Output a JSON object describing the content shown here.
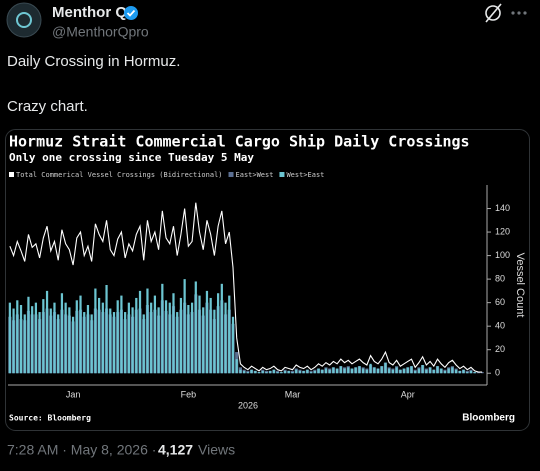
{
  "tweet": {
    "author": "Menthor Q",
    "handle": "@MenthorQpro",
    "lines": [
      "Daily Crossing in Hormuz.",
      "Crazy chart."
    ]
  },
  "footer": {
    "time": "7:28 AM · May 8, 2026 ·",
    "views_count": "4,127",
    "views_label": "Views"
  },
  "chart_data": {
    "type": "bar",
    "title": "Hormuz Strait Commercial Cargo Ship Daily Crossings",
    "subtitle": "Only one crossing since Tuesday 5 May",
    "source": "Source: Bloomberg",
    "brand": "Bloomberg",
    "ylabel": "Vessel Count",
    "x_year_label": "2026",
    "categories": [
      null,
      null,
      null,
      null,
      null,
      null,
      null,
      null,
      null,
      null,
      null,
      null,
      null,
      null,
      null,
      null,
      null,
      "Jan",
      null,
      null,
      null,
      null,
      null,
      null,
      null,
      null,
      null,
      null,
      null,
      null,
      null,
      null,
      null,
      null,
      null,
      null,
      null,
      null,
      null,
      null,
      null,
      null,
      null,
      null,
      null,
      null,
      null,
      null,
      "Feb",
      null,
      null,
      null,
      null,
      null,
      null,
      null,
      null,
      null,
      null,
      null,
      null,
      null,
      null,
      null,
      null,
      null,
      null,
      null,
      null,
      null,
      null,
      null,
      null,
      null,
      null,
      null,
      "Mar",
      null,
      null,
      null,
      null,
      null,
      null,
      null,
      null,
      null,
      null,
      null,
      null,
      null,
      null,
      null,
      null,
      null,
      null,
      null,
      null,
      null,
      null,
      null,
      null,
      null,
      null,
      null,
      null,
      null,
      null,
      "Apr",
      null,
      null,
      null,
      null,
      null,
      null,
      null,
      null,
      null,
      null,
      null,
      null,
      null,
      null,
      null,
      null,
      null,
      null,
      null,
      null
    ],
    "series": [
      {
        "name": "Total Commerical Vessel Crossings (Bidirectional)",
        "color": "#ffffff",
        "kind": "line",
        "values": [
          108,
          100,
          112,
          104,
          95,
          118,
          107,
          110,
          98,
          115,
          125,
          104,
          112,
          96,
          122,
          110,
          105,
          92,
          115,
          120,
          100,
          108,
          95,
          127,
          118,
          112,
          130,
          105,
          100,
          114,
          120,
          98,
          110,
          104,
          118,
          125,
          96,
          130,
          112,
          120,
          105,
          138,
          115,
          110,
          125,
          100,
          118,
          140,
          108,
          112,
          145,
          120,
          105,
          130,
          118,
          100,
          125,
          138,
          110,
          120,
          90,
          30,
          8,
          5,
          3,
          6,
          4,
          2,
          5,
          3,
          4,
          6,
          3,
          2,
          5,
          4,
          3,
          7,
          5,
          4,
          6,
          3,
          5,
          8,
          6,
          9,
          7,
          10,
          8,
          12,
          9,
          11,
          8,
          10,
          12,
          9,
          7,
          15,
          10,
          8,
          12,
          18,
          9,
          7,
          11,
          6,
          8,
          10,
          12,
          5,
          9,
          14,
          7,
          10,
          6,
          12,
          8,
          5,
          9,
          11,
          7,
          4,
          6,
          3,
          5,
          2,
          1,
          1
        ]
      },
      {
        "name": "East>West",
        "color": "#5b6f92",
        "kind": "bar",
        "values": [
          48,
          45,
          50,
          46,
          45,
          53,
          50,
          50,
          46,
          52,
          55,
          49,
          52,
          46,
          54,
          50,
          49,
          44,
          53,
          54,
          48,
          50,
          45,
          55,
          54,
          52,
          55,
          50,
          48,
          52,
          54,
          46,
          50,
          48,
          54,
          55,
          46,
          58,
          52,
          54,
          49,
          62,
          53,
          50,
          57,
          48,
          54,
          60,
          50,
          52,
          67,
          54,
          49,
          60,
          54,
          46,
          57,
          62,
          50,
          54,
          42,
          18,
          5,
          3,
          2,
          3,
          2,
          1,
          3,
          2,
          2,
          3,
          2,
          1,
          3,
          2,
          2,
          4,
          3,
          2,
          3,
          2,
          3,
          4,
          3,
          5,
          4,
          5,
          4,
          6,
          5,
          6,
          4,
          5,
          6,
          5,
          4,
          7,
          5,
          4,
          6,
          9,
          5,
          4,
          6,
          3,
          4,
          5,
          6,
          3,
          5,
          7,
          4,
          5,
          3,
          6,
          4,
          3,
          5,
          6,
          4,
          2,
          3,
          2,
          3,
          1,
          1,
          1
        ]
      },
      {
        "name": "West>East",
        "color": "#6cc5d1",
        "kind": "bar",
        "values": [
          60,
          55,
          62,
          58,
          50,
          65,
          57,
          60,
          52,
          63,
          70,
          55,
          60,
          50,
          68,
          60,
          56,
          48,
          62,
          66,
          52,
          58,
          50,
          72,
          64,
          60,
          75,
          55,
          52,
          62,
          66,
          52,
          60,
          56,
          64,
          70,
          50,
          72,
          60,
          66,
          56,
          76,
          62,
          60,
          68,
          52,
          64,
          80,
          58,
          60,
          78,
          66,
          56,
          70,
          64,
          54,
          68,
          76,
          60,
          66,
          48,
          12,
          3,
          2,
          1,
          3,
          2,
          1,
          2,
          1,
          2,
          3,
          1,
          1,
          2,
          2,
          1,
          3,
          2,
          2,
          3,
          1,
          2,
          4,
          3,
          4,
          3,
          5,
          4,
          6,
          4,
          5,
          4,
          5,
          6,
          4,
          3,
          8,
          5,
          4,
          6,
          9,
          4,
          3,
          5,
          3,
          4,
          5,
          6,
          2,
          4,
          7,
          3,
          5,
          3,
          6,
          4,
          2,
          4,
          5,
          3,
          2,
          3,
          1,
          2,
          1,
          0,
          0
        ]
      }
    ],
    "ylim": [
      -10,
      160
    ],
    "yticks": [
      0,
      20,
      40,
      60,
      80,
      100,
      120,
      140
    ],
    "grid": false,
    "axis_side": "right"
  }
}
